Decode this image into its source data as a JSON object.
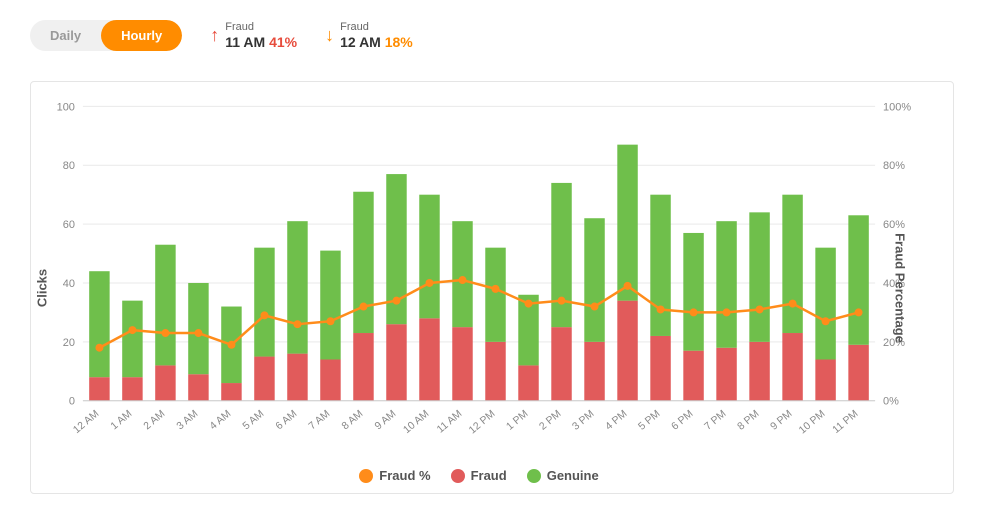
{
  "toggle": {
    "daily": "Daily",
    "hourly": "Hourly",
    "active": "hourly"
  },
  "stats": {
    "peak": {
      "label": "Fraud",
      "time": "11 AM",
      "pct": "41%"
    },
    "low": {
      "label": "Fraud",
      "time": "12 AM",
      "pct": "18%"
    }
  },
  "axes": {
    "left_label": "Clicks",
    "right_label": "Fraud Percentage",
    "left_ticks": [
      0,
      20,
      40,
      60,
      80,
      100
    ],
    "right_ticks": [
      "0%",
      "20%",
      "40%",
      "60%",
      "80%",
      "100%"
    ],
    "ylim": [
      0,
      100
    ]
  },
  "legend": {
    "fraud_pct": "Fraud %",
    "fraud": "Fraud",
    "genuine": "Genuine"
  },
  "colors": {
    "fraud": "#e15b5b",
    "genuine": "#6fbf4b",
    "line": "#ff8c1a",
    "marker": "#ff8c1a",
    "grid": "#e9e9e9",
    "axis_text": "#888888",
    "background": "#ffffff"
  },
  "chart": {
    "type": "stacked-bar-with-line",
    "bar_width_ratio": 0.62,
    "line_width": 2.5,
    "marker_radius": 4,
    "categories": [
      "12 AM",
      "1 AM",
      "2 AM",
      "3 AM",
      "4 AM",
      "5 AM",
      "6 AM",
      "7 AM",
      "8 AM",
      "9 AM",
      "10 AM",
      "11 AM",
      "12 PM",
      "1 PM",
      "2 PM",
      "3 PM",
      "4 PM",
      "5 PM",
      "6 PM",
      "7 PM",
      "8 PM",
      "9 PM",
      "10 PM",
      "11 PM"
    ],
    "fraud": [
      8,
      8,
      12,
      9,
      6,
      15,
      16,
      14,
      23,
      26,
      28,
      25,
      20,
      12,
      25,
      20,
      34,
      22,
      17,
      18,
      20,
      23,
      14,
      19
    ],
    "genuine": [
      36,
      26,
      41,
      31,
      26,
      37,
      45,
      37,
      48,
      51,
      42,
      36,
      32,
      24,
      49,
      42,
      53,
      48,
      40,
      43,
      44,
      47,
      38,
      44
    ],
    "fraud_pct": [
      18,
      24,
      23,
      23,
      19,
      29,
      26,
      27,
      32,
      34,
      40,
      41,
      38,
      33,
      34,
      32,
      39,
      31,
      30,
      30,
      31,
      33,
      27,
      30
    ]
  }
}
